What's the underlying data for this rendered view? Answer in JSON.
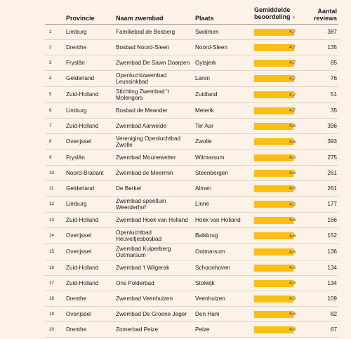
{
  "header": {
    "rank": "",
    "provincie": "Provincie",
    "naam": "Naam zwembad",
    "plaats": "Plaats",
    "score_line1": "Gemiddelde",
    "score_line2": "beoordeling",
    "sort_icon": "triangle-down-icon",
    "reviews_line1": "Aantal",
    "reviews_line2": "reviews"
  },
  "colors": {
    "bar": "#fbbe12",
    "background": "#fcf2e8"
  },
  "chart_data": {
    "type": "table",
    "score_scale": [
      0,
      5
    ],
    "rows": [
      {
        "rank": "1",
        "provincie": "Limburg",
        "naam": "Familiebad de Bosberg",
        "plaats": "Swalmen",
        "score": 4.7,
        "score_label": "4,7",
        "reviews": "387"
      },
      {
        "rank": "2",
        "provincie": "Drenthe",
        "naam": "Bosbad Noord-Sleen",
        "plaats": "Noord-Sleen",
        "score": 4.7,
        "score_label": "4,7",
        "reviews": "135"
      },
      {
        "rank": "3",
        "provincie": "Fryslân",
        "naam": "Zwembad De Sawn Doarpen",
        "plaats": "Gytsjerk",
        "score": 4.7,
        "score_label": "4,7",
        "reviews": "85"
      },
      {
        "rank": "4",
        "provincie": "Gelderland",
        "naam": "Openluchtzwembad Leussinkbad",
        "plaats": "Laren",
        "score": 4.7,
        "score_label": "4,7",
        "reviews": "76"
      },
      {
        "rank": "5",
        "provincie": "Zuid-Holland",
        "naam": "Stichting Zwembad 't Molengors",
        "plaats": "Zuidland",
        "score": 4.7,
        "score_label": "4,7",
        "reviews": "51"
      },
      {
        "rank": "6",
        "provincie": "Limburg",
        "naam": "Bosbad de Meander",
        "plaats": "Meterik",
        "score": 4.7,
        "score_label": "4,7",
        "reviews": "35"
      },
      {
        "rank": "7",
        "provincie": "Zuid-Holland",
        "naam": "Zwembad Aarweide",
        "plaats": "Ter Aar",
        "score": 4.6,
        "score_label": "4,6",
        "reviews": "396"
      },
      {
        "rank": "8",
        "provincie": "Overijssel",
        "naam": "Vereniging Openluchtbad Zwolle",
        "plaats": "Zwolle",
        "score": 4.6,
        "score_label": "4,6",
        "reviews": "393"
      },
      {
        "rank": "9",
        "provincie": "Fryslân",
        "naam": "Zwembad Mounewetter",
        "plaats": "Witmarsum",
        "score": 4.6,
        "score_label": "4,6",
        "reviews": "275"
      },
      {
        "rank": "10",
        "provincie": "Noord-Brabant",
        "naam": "Zwembad de Meermin",
        "plaats": "Steenbergen",
        "score": 4.6,
        "score_label": "4,6",
        "reviews": "261"
      },
      {
        "rank": "11",
        "provincie": "Gelderland",
        "naam": "De Berkel",
        "plaats": "Almen",
        "score": 4.6,
        "score_label": "4,6",
        "reviews": "261"
      },
      {
        "rank": "12",
        "provincie": "Limburg",
        "naam": "Zwembad-speeltuin Weerderhof",
        "plaats": "Linne",
        "score": 4.6,
        "score_label": "4,6",
        "reviews": "177"
      },
      {
        "rank": "13",
        "provincie": "Zuid-Holland",
        "naam": "Zwembad Hoek van Holland",
        "plaats": "Hoek van Holland",
        "score": 4.6,
        "score_label": "4,6",
        "reviews": "166"
      },
      {
        "rank": "14",
        "provincie": "Overijssel",
        "naam": "Openluchtbad Heuveltjesbosbad",
        "plaats": "Balkbrug",
        "score": 4.6,
        "score_label": "4,6",
        "reviews": "152"
      },
      {
        "rank": "15",
        "provincie": "Overijssel",
        "naam": "Zwembad Kuiperberg Ootmarsum",
        "plaats": "Ootmarsum",
        "score": 4.6,
        "score_label": "4,6",
        "reviews": "136"
      },
      {
        "rank": "16",
        "provincie": "Zuid-Holland",
        "naam": "Zwembad 't Wilgerak",
        "plaats": "Schoonhoven",
        "score": 4.6,
        "score_label": "4,6",
        "reviews": "134"
      },
      {
        "rank": "17",
        "provincie": "Zuid-Holland",
        "naam": "Ons Polderbad",
        "plaats": "Stolwijk",
        "score": 4.6,
        "score_label": "4,6",
        "reviews": "134"
      },
      {
        "rank": "18",
        "provincie": "Drenthe",
        "naam": "Zwembad Veenhuizen",
        "plaats": "Veenhuizen",
        "score": 4.6,
        "score_label": "4,6",
        "reviews": "109"
      },
      {
        "rank": "19",
        "provincie": "Overijssel",
        "naam": "Zwembad De Groene Jager",
        "plaats": "Den Ham",
        "score": 4.6,
        "score_label": "4,6",
        "reviews": "82"
      },
      {
        "rank": "20",
        "provincie": "Drenthe",
        "naam": "Zomerbad Peize",
        "plaats": "Peize",
        "score": 4.6,
        "score_label": "4,6",
        "reviews": "67"
      }
    ]
  }
}
